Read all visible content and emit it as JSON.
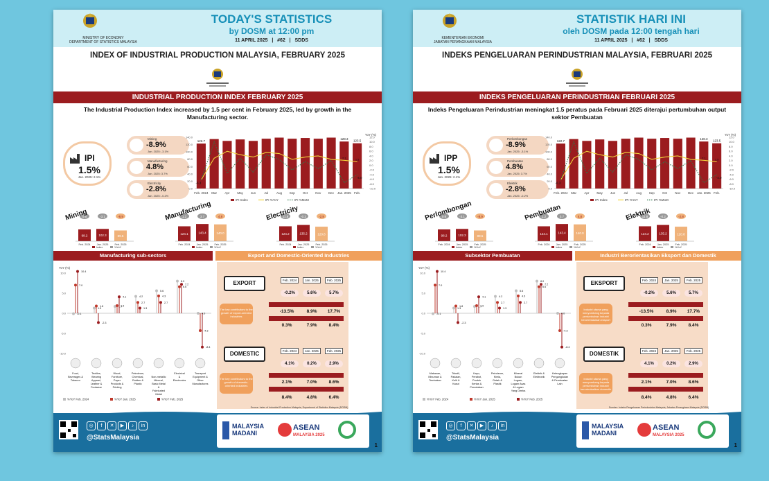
{
  "sheets": {
    "en": {
      "agency": "MINISTRY OF ECONOMY\nDEPARTMENT OF STATISTICS MALAYSIA",
      "title": "TODAY'S STATISTICS",
      "subtitle": "by DOSM at 12:00 pm",
      "meta": "11 APRIL 2025   |   #62   |   SDDS",
      "main_title": "INDEX OF INDUSTRIAL PRODUCTION MALAYSIA, FEBRUARY 2025",
      "band": "INDUSTRIAL PRODUCTION INDEX FEBRUARY 2025",
      "lead": "The Industrial Production Index increased by 1.5 per cent in February 2025, led by growth in the Manufacturing sector.",
      "ipi": {
        "name": "IPI",
        "value": "1.5%",
        "prev": "Jan. 2025: 2.1%"
      },
      "sectors": [
        {
          "name": "Mining",
          "value": "-8.9%",
          "prev": "Jan. 2025: -3.1%"
        },
        {
          "name": "Manufacturing",
          "value": "4.8%",
          "prev": "Jan. 2025: 3.7%"
        },
        {
          "name": "Electricity",
          "value": "-2.8%",
          "prev": "Jan. 2025: -0.2%"
        }
      ],
      "mini_titles": [
        "Mining",
        "Manufacturing",
        "Electricity"
      ],
      "left_band": "Manufacturing sub-sectors",
      "right_band": "Export and Domestic-Oriented Industries",
      "export_label": "EXPORT",
      "domestic_label": "DOMESTIC",
      "export_note": "The key contributors to the growth of export-oriented industries",
      "domestic_note": "The key contributors to the growth of domestic-oriented industries",
      "period_heads": [
        "Feb. 2024",
        "Jan. 2025",
        "Feb. 2025"
      ],
      "export_vals": [
        "-0.2%",
        "5.6%",
        "5.7%"
      ],
      "export_rows": [
        [
          "-13.5%",
          "8.9%",
          "17.7%"
        ],
        [
          "0.3%",
          "7.9%",
          "8.4%"
        ]
      ],
      "domestic_vals": [
        "4.1%",
        "0.2%",
        "2.9%"
      ],
      "domestic_rows": [
        [
          "2.1%",
          "7.0%",
          "8.6%"
        ],
        [
          "8.4%",
          "4.8%",
          "6.4%"
        ]
      ],
      "subsectors": [
        "Food, Beverages & Tobacco",
        "Textiles, Wearing Apparel, Leather & Footwear",
        "Wood, Furniture, Paper Products & Printing",
        "Petroleum, Chemical, Rubber & Plastic",
        "Non-metallic Mineral, Basic Metal & Fabricated Metal",
        "Electrical & Electronics",
        "Transport Equipment & Other Manufactures"
      ],
      "lolli_legend": [
        "%YoY Feb. 2024",
        "%YoY Jan. 2025",
        "%YoY Feb. 2025"
      ],
      "source": "Source: Index of Industrial Production Malaysia, Department of Statistics Malaysia (DOSM)",
      "handle": "@StatsMalaysia",
      "page": "1"
    },
    "ms": {
      "agency": "KEMENTERIAN EKONOMI\nJABATAN PERANGKAAN MALAYSIA",
      "title": "STATISTIK HARI INI",
      "subtitle": "oleh DOSM pada 12:00 tengah hari",
      "meta": "11 APRIL 2025   |   #62   |   SDDS",
      "main_title": "INDEKS PENGELUARAN PERINDUSTRIAN MALAYSIA, FEBRUARI 2025",
      "band": "INDEKS PENGELUARAN PERINDUSTRIAN FEBRUARI 2025",
      "lead": "Indeks Pengeluaran Perindustrian meningkat 1.5 peratus pada Februari 2025 diterajui pertumbuhan output sektor Pembuatan",
      "ipi": {
        "name": "IPP",
        "value": "1.5%",
        "prev": "Jan. 2025: 2.1%"
      },
      "sectors": [
        {
          "name": "Perlombongan",
          "value": "-8.9%",
          "prev": "Jan. 2025: -3.1%"
        },
        {
          "name": "Pembuatan",
          "value": "4.8%",
          "prev": "Jan. 2025: 3.7%"
        },
        {
          "name": "Elektrik",
          "value": "-2.8%",
          "prev": "Jan. 2025: -0.2%"
        }
      ],
      "mini_titles": [
        "Perlombongan",
        "Pembuatan",
        "Elektrik"
      ],
      "left_band": "Subsektor Pembuatan",
      "right_band": "Industri Berorientasikan Eksport dan Domestik",
      "export_label": "EKSPORT",
      "domestic_label": "DOMESTIK",
      "export_note": "Industri utama yang menyumbang kepada pertumbuhan industri berorientasikan eksport",
      "domestic_note": "Industri utama yang menyumbang kepada pertumbuhan industri berorientasikan domestik",
      "period_heads": [
        "Feb. 2024",
        "Jan. 2025",
        "Feb. 2025"
      ],
      "export_vals": [
        "-0.2%",
        "5.6%",
        "5.7%"
      ],
      "export_rows": [
        [
          "-13.5%",
          "8.9%",
          "17.7%"
        ],
        [
          "0.3%",
          "7.9%",
          "8.4%"
        ]
      ],
      "domestic_vals": [
        "4.1%",
        "0.2%",
        "2.9%"
      ],
      "domestic_rows": [
        [
          "2.1%",
          "7.0%",
          "8.6%"
        ],
        [
          "8.4%",
          "4.8%",
          "6.4%"
        ]
      ],
      "subsectors": [
        "Makanan, Minuman & Tembakau",
        "Tekstil, Pakaian, Kulit & Kasut",
        "Kayu, Perabot, Produk Kertas & Percetakan",
        "Petroleum, Kimia, Getah & Plastik",
        "Mineral Bukan Logam, Logam Asas & Logam Yang Direka",
        "Elektrik & Elektronik",
        "Kelengkapan Pengangkutan & Pembuatan Lain"
      ],
      "lolli_legend": [
        "%YoY Feb. 2024",
        "%YoY Jan. 2025",
        "%YoY Feb. 2025"
      ],
      "source": "Sumber: Indeks Pengeluaran Perindustrian Malaysia, Jabatan Perangkaan Malaysia (DOSM)",
      "handle": "@StatsMalaysia",
      "page": "1"
    }
  },
  "chart_data": [
    {
      "type": "bar",
      "categories": [
        "Feb. 2024",
        "Mar",
        "Apr",
        "May",
        "Jun",
        "Jul",
        "Aug",
        "Sep",
        "Oct",
        "Nov",
        "Dec",
        "Jan. 2025",
        "Feb."
      ],
      "series": [
        {
          "name": "IPI Index",
          "type": "bar",
          "values": [
            122.7,
            135.0,
            130.0,
            134.0,
            130.0,
            136.0,
            139.0,
            136.0,
            138.0,
            136.0,
            139.0,
            128.3,
            123.5
          ]
        },
        {
          "name": "IPI %YoY",
          "type": "line",
          "values": [
            -6.3,
            3.0,
            6.0,
            4.5,
            3.5,
            5.5,
            5.0,
            2.5,
            3.5,
            4.0,
            2.5,
            2.1,
            1.5
          ]
        },
        {
          "name": "IPI %MoM",
          "type": "line",
          "values": [
            -6.3,
            10.0,
            -3.5,
            3.0,
            -3.0,
            4.5,
            2.5,
            -2.0,
            1.5,
            -1.5,
            2.0,
            -7.5,
            -4.0
          ]
        }
      ],
      "labels": [
        "122.7",
        "128.3",
        "123.5",
        "-6.3",
        "2.1",
        "1.5",
        "-4.0"
      ],
      "ylabel_left": "Index",
      "ylabel_right": "YoY (%)",
      "ylim_left": [
        0,
        140
      ],
      "ylim_right": [
        -10,
        12
      ]
    },
    {
      "type": "bar",
      "categories": [
        "Feb. 2024",
        "Jan. 2025",
        "Feb. 2025"
      ],
      "series": [
        {
          "name": "Index",
          "values": [
            98.2,
            102.3,
            89.5
          ]
        },
        {
          "name": "%YoY",
          "values": [
            0.6,
            -3.1,
            -8.9
          ]
        }
      ],
      "title": "Mining"
    },
    {
      "type": "bar",
      "categories": [
        "Feb. 2024",
        "Jan. 2025",
        "Feb. 2025"
      ],
      "series": [
        {
          "name": "Index",
          "values": [
            124.1,
            143.4,
            140.0
          ]
        },
        {
          "name": "%YoY",
          "values": [
            1.2,
            3.7,
            4.8
          ]
        }
      ],
      "title": "Manufacturing"
    },
    {
      "type": "bar",
      "categories": [
        "Feb. 2024",
        "Jan. 2025",
        "Feb. 2025"
      ],
      "series": [
        {
          "name": "Index",
          "values": [
            124.2,
            135.2,
            120.8
          ]
        },
        {
          "name": "%YoY",
          "values": [
            11.8,
            -0.2,
            -2.8
          ]
        }
      ],
      "title": "Electricity"
    },
    {
      "type": "scatter",
      "ylabel": "YoY (%)",
      "ylim": [
        -10,
        10
      ],
      "categories": [
        "Food, Beverages & Tobacco",
        "Textiles",
        "Wood",
        "Petroleum",
        "Non-metallic Mineral",
        "Electrical & Electronics",
        "Transport Equipment"
      ],
      "series": [
        {
          "name": "%YoY Feb. 2024",
          "values": [
            -0.1,
            1.3,
            1.7,
            4.2,
            5.6,
            8.0,
            0.0
          ]
        },
        {
          "name": "%YoY Jan. 2025",
          "values": [
            7.0,
            1.8,
            1.9,
            2.7,
            4.3,
            6.6,
            -4.3
          ]
        },
        {
          "name": "%YoY Feb. 2025",
          "values": [
            10.4,
            -2.3,
            4.1,
            1.3,
            2.7,
            7.2,
            -8.4
          ]
        }
      ]
    }
  ],
  "colors": {
    "background": "#6fc6df",
    "brand_red": "#9b1c1f",
    "accent_orange": "#f0a05c",
    "header_blue": "#1790b8",
    "line_yellow": "#f2d43a"
  }
}
